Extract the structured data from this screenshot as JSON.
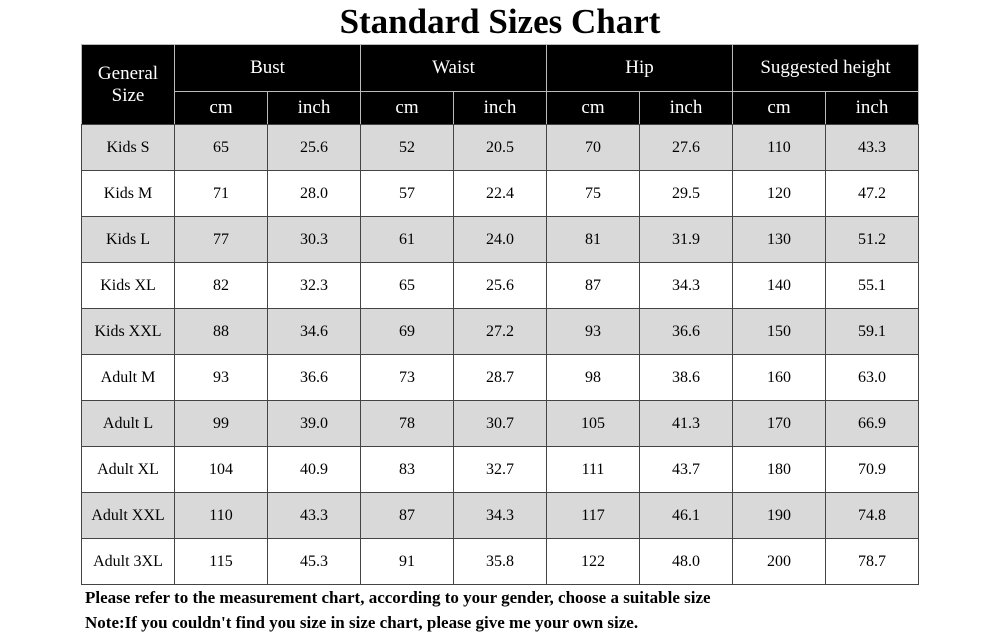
{
  "title": "Standard Sizes Chart",
  "table": {
    "corner": "General Size",
    "groups": [
      "Bust",
      "Waist",
      "Hip",
      "Suggested height"
    ],
    "units": [
      "cm",
      "inch",
      "cm",
      "inch",
      "cm",
      "inch",
      "cm",
      "inch"
    ],
    "rows": [
      [
        "Kids S",
        "65",
        "25.6",
        "52",
        "20.5",
        "70",
        "27.6",
        "110",
        "43.3"
      ],
      [
        "Kids M",
        "71",
        "28.0",
        "57",
        "22.4",
        "75",
        "29.5",
        "120",
        "47.2"
      ],
      [
        "Kids L",
        "77",
        "30.3",
        "61",
        "24.0",
        "81",
        "31.9",
        "130",
        "51.2"
      ],
      [
        "Kids XL",
        "82",
        "32.3",
        "65",
        "25.6",
        "87",
        "34.3",
        "140",
        "55.1"
      ],
      [
        "Kids XXL",
        "88",
        "34.6",
        "69",
        "27.2",
        "93",
        "36.6",
        "150",
        "59.1"
      ],
      [
        "Adult M",
        "93",
        "36.6",
        "73",
        "28.7",
        "98",
        "38.6",
        "160",
        "63.0"
      ],
      [
        "Adult L",
        "99",
        "39.0",
        "78",
        "30.7",
        "105",
        "41.3",
        "170",
        "66.9"
      ],
      [
        "Adult XL",
        "104",
        "40.9",
        "83",
        "32.7",
        "111",
        "43.7",
        "180",
        "70.9"
      ],
      [
        "Adult XXL",
        "110",
        "43.3",
        "87",
        "34.3",
        "117",
        "46.1",
        "190",
        "74.8"
      ],
      [
        "Adult 3XL",
        "115",
        "45.3",
        "91",
        "35.8",
        "122",
        "48.0",
        "200",
        "78.7"
      ]
    ]
  },
  "notes": [
    "Please refer to the measurement chart, according to your gender, choose a suitable size",
    "Note:If you couldn't find you size in size chart, please give me your own size."
  ]
}
